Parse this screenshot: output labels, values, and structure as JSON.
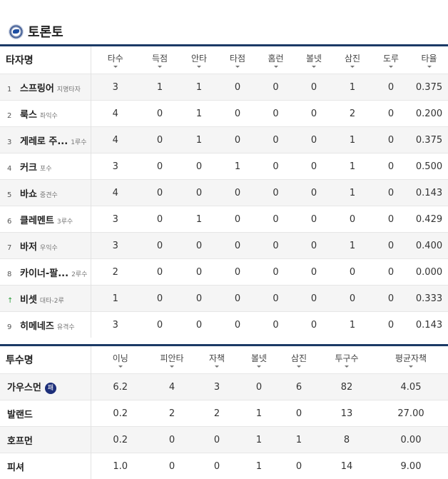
{
  "team": {
    "name": "토론토",
    "logo": "blue-jays-logo"
  },
  "batting": {
    "headers": [
      "타자명",
      "타수",
      "득점",
      "안타",
      "타점",
      "홈런",
      "볼넷",
      "삼진",
      "도루",
      "타율"
    ],
    "rows": [
      {
        "order": "1",
        "name": "스프링어",
        "pos": "지명타자",
        "stats": [
          "3",
          "1",
          "1",
          "0",
          "0",
          "0",
          "1",
          "0",
          "0.375"
        ]
      },
      {
        "order": "2",
        "name": "룩스",
        "pos": "좌익수",
        "stats": [
          "4",
          "0",
          "1",
          "0",
          "0",
          "0",
          "2",
          "0",
          "0.200"
        ]
      },
      {
        "order": "3",
        "name": "게레로 주...",
        "pos": "1루수",
        "stats": [
          "4",
          "0",
          "1",
          "0",
          "0",
          "0",
          "1",
          "0",
          "0.375"
        ]
      },
      {
        "order": "4",
        "name": "커크",
        "pos": "포수",
        "stats": [
          "3",
          "0",
          "0",
          "1",
          "0",
          "0",
          "1",
          "0",
          "0.500"
        ]
      },
      {
        "order": "5",
        "name": "바쇼",
        "pos": "중견수",
        "stats": [
          "4",
          "0",
          "0",
          "0",
          "0",
          "0",
          "1",
          "0",
          "0.143"
        ]
      },
      {
        "order": "6",
        "name": "클레멘트",
        "pos": "3루수",
        "stats": [
          "3",
          "0",
          "1",
          "0",
          "0",
          "0",
          "0",
          "0",
          "0.429"
        ]
      },
      {
        "order": "7",
        "name": "바저",
        "pos": "우익수",
        "stats": [
          "3",
          "0",
          "0",
          "0",
          "0",
          "0",
          "1",
          "0",
          "0.400"
        ]
      },
      {
        "order": "8",
        "name": "카이너-팔...",
        "pos": "2루수",
        "stats": [
          "2",
          "0",
          "0",
          "0",
          "0",
          "0",
          "0",
          "0",
          "0.000"
        ]
      },
      {
        "order": "↑",
        "name": "비셋",
        "pos": "대타-2루",
        "stats": [
          "1",
          "0",
          "0",
          "0",
          "0",
          "0",
          "0",
          "0",
          "0.333"
        ]
      },
      {
        "order": "9",
        "name": "히메네즈",
        "pos": "유격수",
        "stats": [
          "3",
          "0",
          "0",
          "0",
          "0",
          "0",
          "1",
          "0",
          "0.143"
        ]
      }
    ]
  },
  "pitching": {
    "headers": [
      "투수명",
      "이닝",
      "피안타",
      "자책",
      "볼넷",
      "삼진",
      "투구수",
      "평균자책"
    ],
    "rows": [
      {
        "name": "가우스먼",
        "badge": "패",
        "stats": [
          "6.2",
          "4",
          "3",
          "0",
          "6",
          "82",
          "4.05"
        ]
      },
      {
        "name": "발랜드",
        "stats": [
          "0.2",
          "2",
          "2",
          "1",
          "0",
          "13",
          "27.00"
        ]
      },
      {
        "name": "호프먼",
        "stats": [
          "0.2",
          "0",
          "0",
          "1",
          "1",
          "8",
          "0.00"
        ]
      },
      {
        "name": "피셔",
        "stats": [
          "1.0",
          "0",
          "0",
          "1",
          "0",
          "14",
          "9.00"
        ]
      }
    ]
  }
}
